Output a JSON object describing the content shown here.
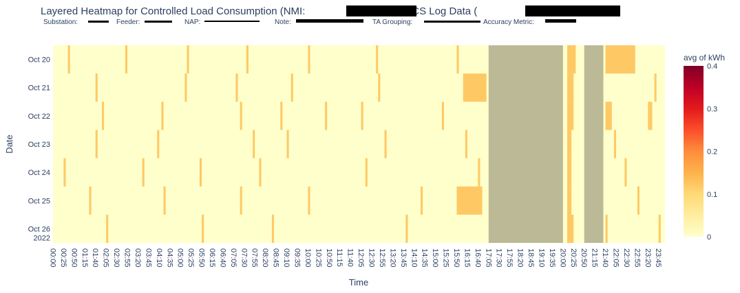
{
  "chart_data": {
    "type": "heatmap",
    "title_parts": [
      "Layered Heatmap for Controlled Load Consumption (NMI:",
      ") and LCS Log Data (",
      ")."
    ],
    "subtitle_labels": [
      "Substation:",
      "Feeder:",
      "NAP:",
      "Note:",
      "TA Grouping:",
      "Accuracy Metric:"
    ],
    "xlabel": "Time",
    "ylabel": "Date",
    "colorbar_title": "avg of kWh",
    "zlim": [
      0,
      0.4
    ],
    "colorbar_ticks": [
      "0",
      "0.1",
      "0.2",
      "0.3",
      "0.4"
    ],
    "colorscale": [
      "#ffffcc",
      "#ffeda0",
      "#fed976",
      "#feb24c",
      "#fd8d3c",
      "#fc4e2a",
      "#e31a1c",
      "#bd0026",
      "#800026"
    ],
    "overlay_color": "#bcb996",
    "x_interval_minutes": 5,
    "x_tick_labels": [
      "00:00",
      "00:25",
      "00:50",
      "01:15",
      "01:40",
      "02:05",
      "02:30",
      "02:55",
      "03:20",
      "03:45",
      "04:10",
      "04:35",
      "05:00",
      "05:25",
      "05:50",
      "06:15",
      "06:40",
      "07:05",
      "07:30",
      "07:55",
      "08:20",
      "08:45",
      "09:10",
      "09:35",
      "10:00",
      "10:25",
      "10:50",
      "11:15",
      "11:40",
      "12:05",
      "12:30",
      "12:55",
      "13:20",
      "13:45",
      "14:10",
      "14:35",
      "15:00",
      "15:25",
      "15:50",
      "16:15",
      "16:40",
      "17:05",
      "17:30",
      "17:55",
      "18:20",
      "18:45",
      "19:10",
      "19:35",
      "20:00",
      "20:25",
      "20:50",
      "21:15",
      "21:40",
      "22:05",
      "22:30",
      "22:55",
      "23:20",
      "23:45"
    ],
    "y_categories": [
      "Oct 20",
      "Oct 21",
      "Oct 22",
      "Oct 23",
      "Oct 24",
      "Oct 25",
      "Oct 26"
    ],
    "y_year_label": "2022",
    "overlays": [
      {
        "start": "17:05",
        "end": "20:00"
      },
      {
        "start": "20:50",
        "end": "21:35"
      }
    ],
    "blocks": [
      {
        "date": "Oct 20",
        "start": "00:35",
        "end": "00:40",
        "value": 0.12
      },
      {
        "date": "Oct 20",
        "start": "02:50",
        "end": "02:55",
        "value": 0.12
      },
      {
        "date": "Oct 20",
        "start": "05:15",
        "end": "05:20",
        "value": 0.12
      },
      {
        "date": "Oct 20",
        "start": "07:35",
        "end": "07:40",
        "value": 0.12
      },
      {
        "date": "Oct 20",
        "start": "10:00",
        "end": "10:05",
        "value": 0.12
      },
      {
        "date": "Oct 20",
        "start": "12:40",
        "end": "12:45",
        "value": 0.12
      },
      {
        "date": "Oct 20",
        "start": "15:50",
        "end": "15:55",
        "value": 0.12
      },
      {
        "date": "Oct 20",
        "start": "20:10",
        "end": "20:30",
        "value": 0.12
      },
      {
        "date": "Oct 20",
        "start": "21:40",
        "end": "22:50",
        "value": 0.12
      },
      {
        "date": "Oct 21",
        "start": "01:40",
        "end": "01:45",
        "value": 0.12
      },
      {
        "date": "Oct 21",
        "start": "05:10",
        "end": "05:15",
        "value": 0.12
      },
      {
        "date": "Oct 21",
        "start": "07:10",
        "end": "07:15",
        "value": 0.12
      },
      {
        "date": "Oct 21",
        "start": "09:20",
        "end": "09:25",
        "value": 0.12
      },
      {
        "date": "Oct 21",
        "start": "12:45",
        "end": "12:50",
        "value": 0.12
      },
      {
        "date": "Oct 21",
        "start": "16:05",
        "end": "17:00",
        "value": 0.12
      },
      {
        "date": "Oct 21",
        "start": "20:10",
        "end": "20:25",
        "value": 0.12
      },
      {
        "date": "Oct 21",
        "start": "23:35",
        "end": "23:40",
        "value": 0.12
      },
      {
        "date": "Oct 22",
        "start": "01:55",
        "end": "02:00",
        "value": 0.12
      },
      {
        "date": "Oct 22",
        "start": "04:15",
        "end": "04:20",
        "value": 0.12
      },
      {
        "date": "Oct 22",
        "start": "07:20",
        "end": "07:25",
        "value": 0.12
      },
      {
        "date": "Oct 22",
        "start": "08:55",
        "end": "09:00",
        "value": 0.12
      },
      {
        "date": "Oct 22",
        "start": "10:40",
        "end": "10:45",
        "value": 0.12
      },
      {
        "date": "Oct 22",
        "start": "12:05",
        "end": "12:10",
        "value": 0.12
      },
      {
        "date": "Oct 22",
        "start": "15:15",
        "end": "15:20",
        "value": 0.12
      },
      {
        "date": "Oct 22",
        "start": "20:10",
        "end": "20:25",
        "value": 0.12
      },
      {
        "date": "Oct 22",
        "start": "21:40",
        "end": "21:55",
        "value": 0.12
      },
      {
        "date": "Oct 22",
        "start": "23:20",
        "end": "23:30",
        "value": 0.12
      },
      {
        "date": "Oct 23",
        "start": "01:40",
        "end": "01:45",
        "value": 0.12
      },
      {
        "date": "Oct 23",
        "start": "04:05",
        "end": "04:10",
        "value": 0.12
      },
      {
        "date": "Oct 23",
        "start": "07:50",
        "end": "07:55",
        "value": 0.12
      },
      {
        "date": "Oct 23",
        "start": "09:10",
        "end": "09:15",
        "value": 0.12
      },
      {
        "date": "Oct 23",
        "start": "13:00",
        "end": "13:05",
        "value": 0.12
      },
      {
        "date": "Oct 23",
        "start": "16:10",
        "end": "16:15",
        "value": 0.12
      },
      {
        "date": "Oct 23",
        "start": "20:10",
        "end": "20:20",
        "value": 0.12
      },
      {
        "date": "Oct 23",
        "start": "22:00",
        "end": "22:05",
        "value": 0.12
      },
      {
        "date": "Oct 24",
        "start": "00:25",
        "end": "00:30",
        "value": 0.12
      },
      {
        "date": "Oct 24",
        "start": "03:30",
        "end": "03:35",
        "value": 0.12
      },
      {
        "date": "Oct 24",
        "start": "05:45",
        "end": "05:50",
        "value": 0.12
      },
      {
        "date": "Oct 24",
        "start": "08:05",
        "end": "08:10",
        "value": 0.12
      },
      {
        "date": "Oct 24",
        "start": "12:15",
        "end": "12:20",
        "value": 0.12
      },
      {
        "date": "Oct 24",
        "start": "16:40",
        "end": "16:45",
        "value": 0.12
      },
      {
        "date": "Oct 24",
        "start": "20:10",
        "end": "20:20",
        "value": 0.12
      },
      {
        "date": "Oct 24",
        "start": "22:25",
        "end": "22:30",
        "value": 0.12
      },
      {
        "date": "Oct 25",
        "start": "01:25",
        "end": "01:30",
        "value": 0.12
      },
      {
        "date": "Oct 25",
        "start": "04:20",
        "end": "04:25",
        "value": 0.12
      },
      {
        "date": "Oct 25",
        "start": "07:20",
        "end": "07:25",
        "value": 0.12
      },
      {
        "date": "Oct 25",
        "start": "10:00",
        "end": "10:05",
        "value": 0.12
      },
      {
        "date": "Oct 25",
        "start": "14:25",
        "end": "14:30",
        "value": 0.12
      },
      {
        "date": "Oct 25",
        "start": "15:50",
        "end": "16:50",
        "value": 0.12
      },
      {
        "date": "Oct 25",
        "start": "20:10",
        "end": "20:20",
        "value": 0.12
      },
      {
        "date": "Oct 25",
        "start": "22:55",
        "end": "23:00",
        "value": 0.12
      },
      {
        "date": "Oct 26",
        "start": "02:05",
        "end": "02:10",
        "value": 0.12
      },
      {
        "date": "Oct 26",
        "start": "05:50",
        "end": "05:55",
        "value": 0.12
      },
      {
        "date": "Oct 26",
        "start": "08:35",
        "end": "08:40",
        "value": 0.12
      },
      {
        "date": "Oct 26",
        "start": "13:50",
        "end": "13:55",
        "value": 0.12
      },
      {
        "date": "Oct 26",
        "start": "20:10",
        "end": "20:25",
        "value": 0.12
      },
      {
        "date": "Oct 26",
        "start": "21:40",
        "end": "21:45",
        "value": 0.12
      },
      {
        "date": "Oct 26",
        "start": "23:45",
        "end": "23:50",
        "value": 0.12
      }
    ]
  }
}
